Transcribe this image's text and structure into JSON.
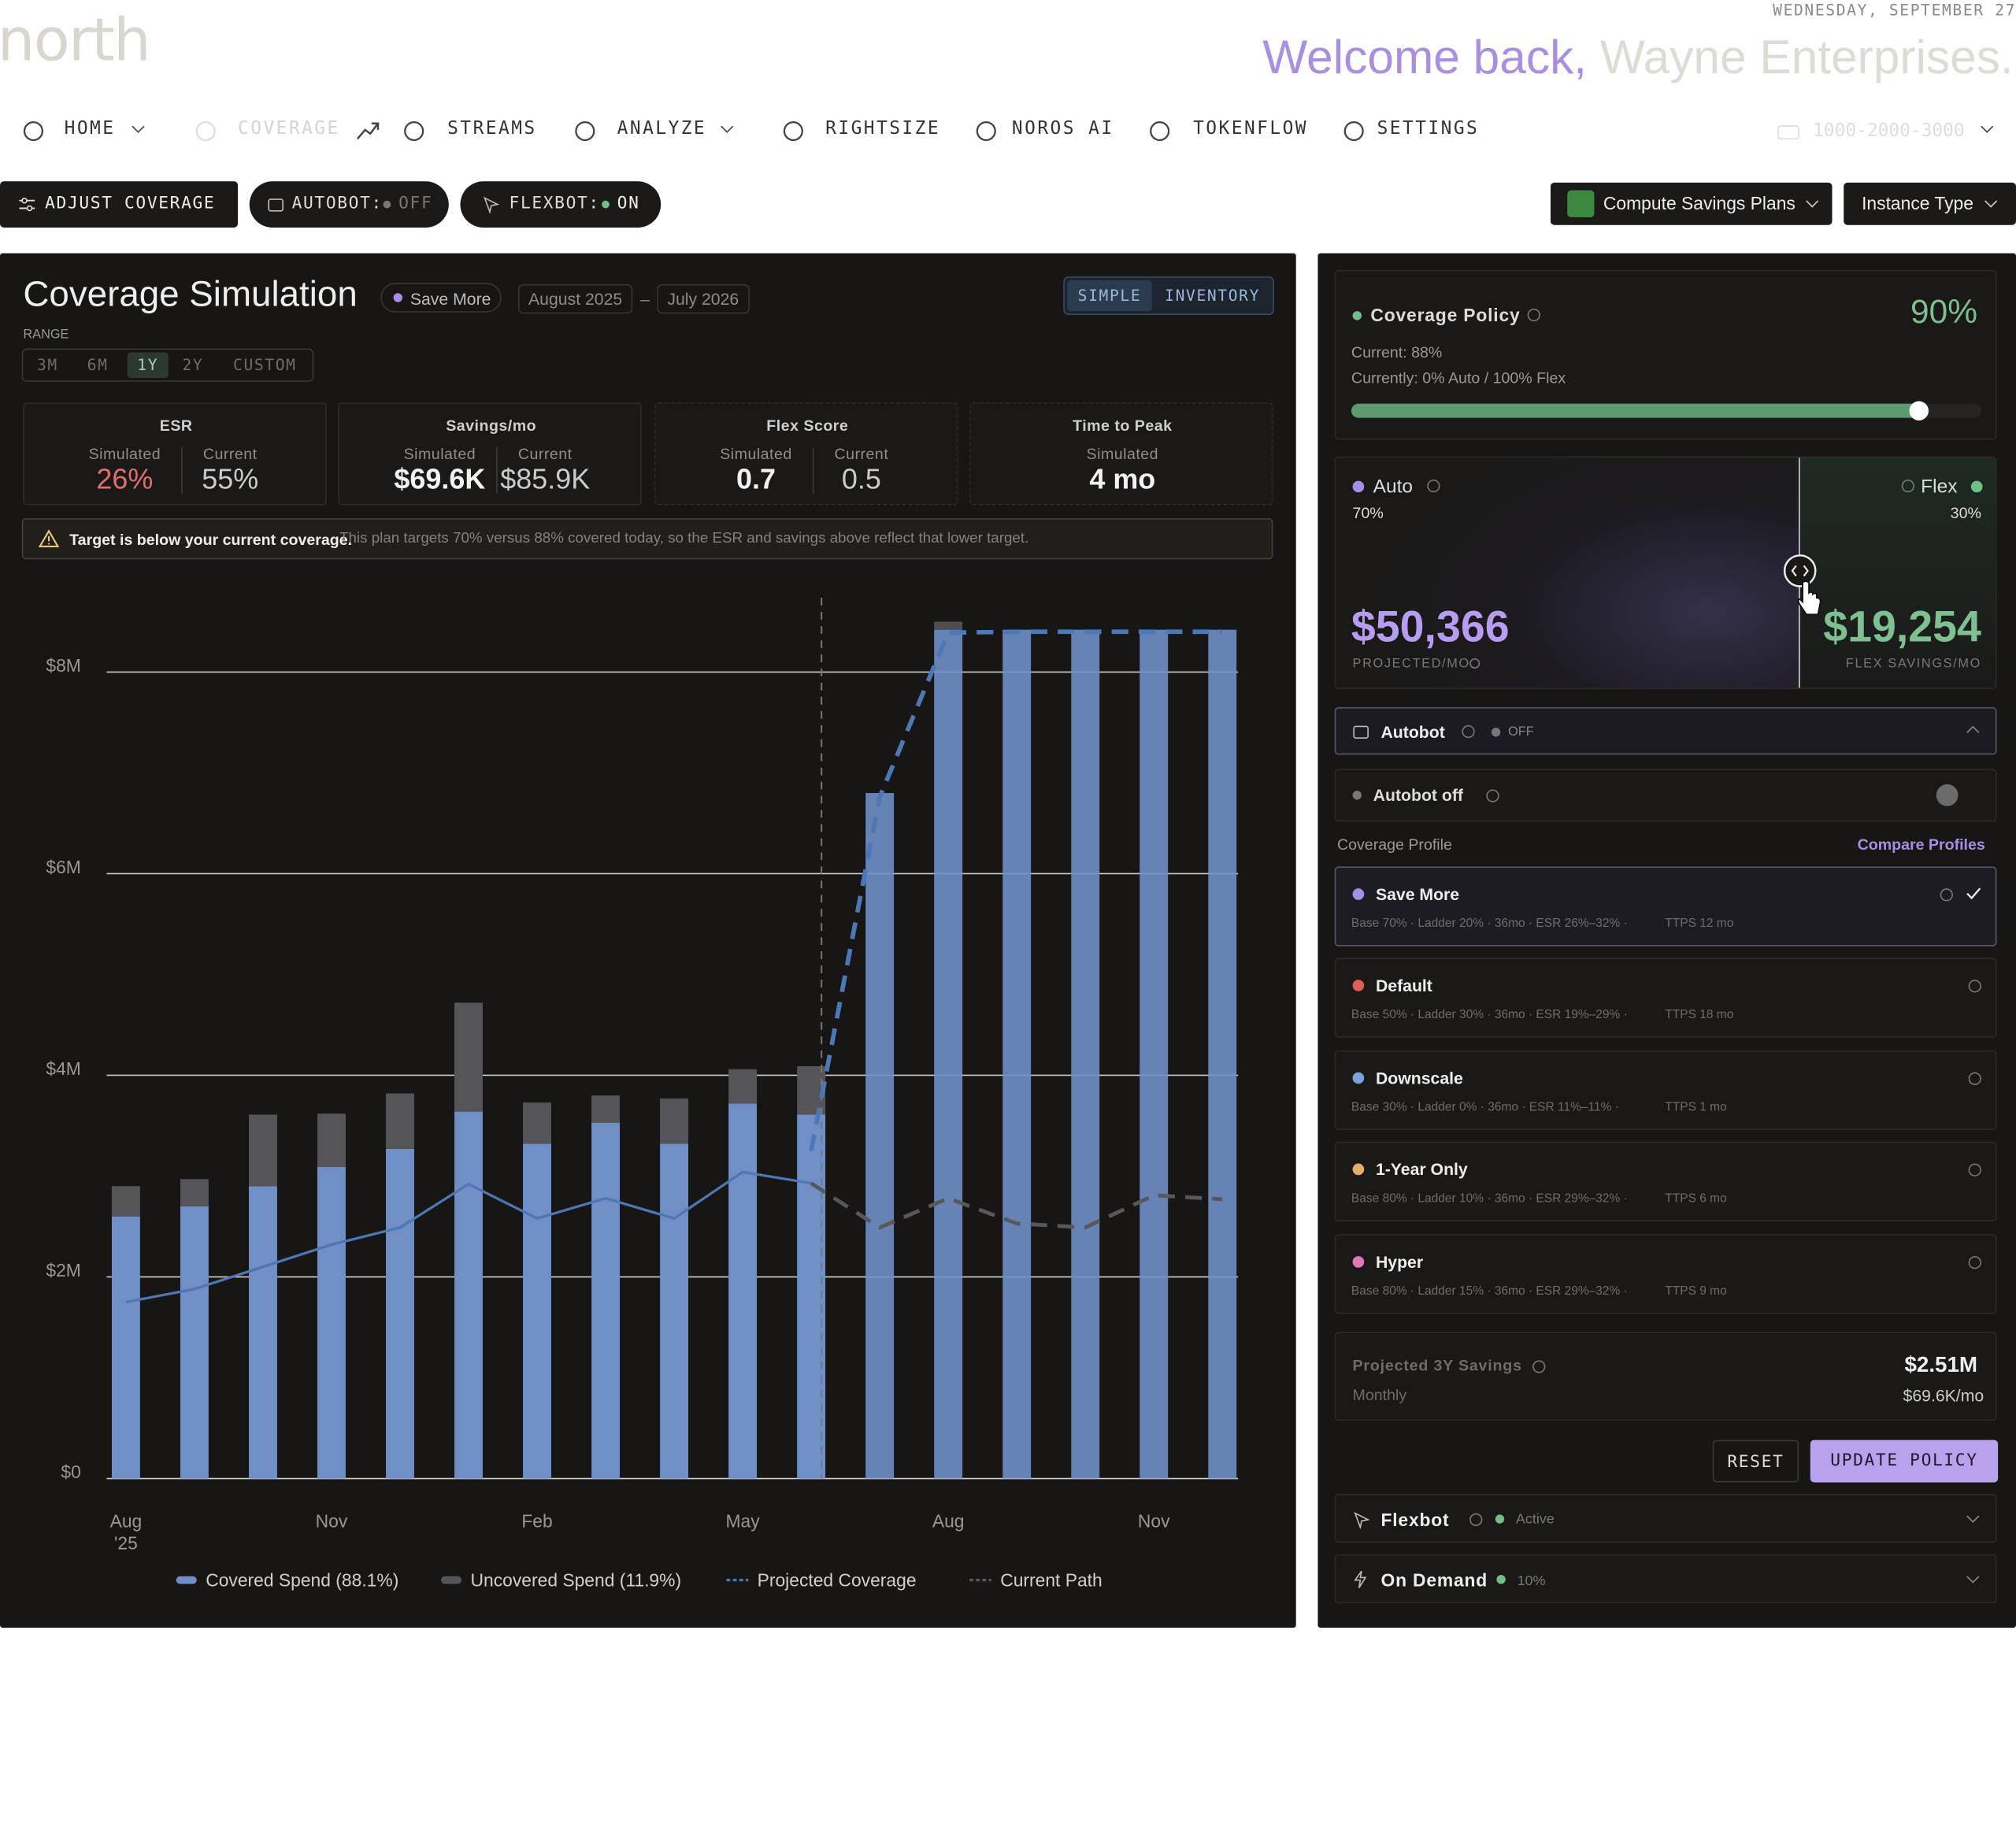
{
  "header": {
    "logo": "north",
    "date": "WEDNESDAY, SEPTEMBER 27",
    "welcome": "Welcome back,",
    "company": "Wayne Enterprises."
  },
  "nav": {
    "items": [
      "HOME",
      "COVERAGE",
      "STREAMS",
      "ANALYZE",
      "RIGHTSIZE",
      "NOROS AI",
      "TOKENFLOW",
      "SETTINGS"
    ],
    "account": "1000-2000-3000"
  },
  "toolbar": {
    "adjust": "ADJUST COVERAGE",
    "autobot": "AUTOBOT:",
    "autobot_state": "OFF",
    "flexbot": "FLEXBOT:",
    "flexbot_state": "ON",
    "plan_type": "Compute Savings Plans",
    "instance_type": "Instance Type"
  },
  "simulation": {
    "title": "Coverage Simulation",
    "profile": "Save More",
    "start": "August 2025",
    "separator": "–",
    "end": "July 2026",
    "modes": [
      "SIMPLE",
      "INVENTORY"
    ],
    "range_label": "RANGE",
    "ranges": [
      "3M",
      "6M",
      "1Y",
      "2Y",
      "CUSTOM"
    ],
    "stats": [
      {
        "title": "ESR",
        "cols": [
          {
            "label": "Simulated",
            "value": "26%"
          },
          {
            "label": "Current",
            "value": "55%"
          }
        ]
      },
      {
        "title": "Savings/mo",
        "cols": [
          {
            "label": "Simulated",
            "value": "$69.6K"
          },
          {
            "label": "Current",
            "value": "$85.9K"
          }
        ]
      },
      {
        "title": "Flex Score",
        "cols": [
          {
            "label": "Simulated",
            "value": "0.7"
          },
          {
            "label": "Current",
            "value": "0.5"
          }
        ]
      },
      {
        "title": "Time to Peak",
        "cols": [
          {
            "label": "Simulated",
            "value": "4 mo"
          }
        ]
      }
    ],
    "warning_title": "Target is below your current coverage.",
    "warning_text": "This plan targets 70% versus 88% covered today, so the ESR and savings above reflect that lower target."
  },
  "chart_data": {
    "type": "bar",
    "stacked": true,
    "categories": [
      "Aug",
      null,
      null,
      "Nov",
      null,
      null,
      "Feb",
      null,
      null,
      "May",
      null,
      null,
      "Aug",
      null,
      null,
      "Nov",
      null
    ],
    "year_label": "'25",
    "today_index": 10,
    "series": [
      {
        "name": "Covered Spend (88.1%)",
        "color": "#6f8fc6",
        "values": [
          2.6,
          2.7,
          2.9,
          3.09,
          3.27,
          3.64,
          3.32,
          3.53,
          3.32,
          3.72,
          3.61,
          6.8,
          8.42,
          8.42,
          8.42,
          8.42,
          8.42
        ]
      },
      {
        "name": "Uncovered Spend (11.9%)",
        "color": "#555458",
        "values": [
          0.3,
          0.27,
          0.71,
          0.53,
          0.55,
          1.08,
          0.41,
          0.27,
          0.45,
          0.34,
          0.48,
          0,
          0.08,
          0,
          0,
          0,
          0
        ]
      },
      {
        "name": "Projected Coverage",
        "type": "line",
        "dash": true,
        "color": "#4d78b8",
        "values": [
          null,
          null,
          null,
          null,
          null,
          null,
          null,
          null,
          null,
          null,
          3.25,
          6.76,
          8.39,
          8.4,
          8.4,
          8.4,
          8.4
        ]
      },
      {
        "name": "Current Path",
        "type": "line",
        "dash": true,
        "color": "#58575c",
        "history_color": "#4d76b2",
        "values": [
          1.75,
          1.88,
          2.1,
          2.32,
          2.49,
          2.92,
          2.58,
          2.78,
          2.58,
          3.04,
          2.93,
          2.49,
          2.78,
          2.53,
          2.49,
          2.81,
          2.77
        ]
      }
    ],
    "ylim": [
      0,
      8.8
    ],
    "yticks": [
      {
        "value": 0,
        "label": "$0"
      },
      {
        "value": 2,
        "label": "$2M"
      },
      {
        "value": 4,
        "label": "$4M"
      },
      {
        "value": 6,
        "label": "$6M"
      },
      {
        "value": 8,
        "label": "$8M"
      }
    ],
    "grid": true
  },
  "policy": {
    "title": "Coverage Policy",
    "target": "90%",
    "current": "Current: 88%",
    "split": "Currently: 0% Auto / 100% Flex",
    "auto": {
      "label": "Auto",
      "share": "70%",
      "amount": "$50,366",
      "caption": "PROJECTED/MO"
    },
    "flex": {
      "label": "Flex",
      "share": "30%",
      "amount": "$19,254",
      "caption": "FLEX SAVINGS/MO"
    },
    "autobot": {
      "label": "Autobot",
      "state": "OFF",
      "toggle_label": "Autobot off"
    },
    "profiles_label": "Coverage Profile",
    "compare": "Compare Profiles",
    "selected": 0,
    "profiles": [
      {
        "name": "Save More",
        "color": "#a88de6",
        "detail": "Base 70% · Ladder 20% · 36mo · ESR 26%–32% ·",
        "ttps": "TTPS 12 mo"
      },
      {
        "name": "Default",
        "color": "#df5f58",
        "detail": "Base 50% · Ladder 30% · 36mo · ESR 19%–29% ·",
        "ttps": "TTPS 18 mo"
      },
      {
        "name": "Downscale",
        "color": "#7aa2d6",
        "detail": "Base 30% · Ladder 0% · 36mo · ESR 11%–11% ·",
        "ttps": "TTPS 1 mo"
      },
      {
        "name": "1-Year Only",
        "color": "#e2ae68",
        "detail": "Base 80% · Ladder 10% · 36mo · ESR 29%–32% ·",
        "ttps": "TTPS 6 mo"
      },
      {
        "name": "Hyper",
        "color": "#df78b6",
        "detail": "Base 80% · Ladder 15% · 36mo · ESR 29%–32% ·",
        "ttps": "TTPS 9 mo"
      }
    ],
    "savings_label": "Projected 3Y Savings",
    "monthly_label": "Monthly",
    "savings_total": "$2.51M",
    "savings_monthly": "$69.6K/mo",
    "reset": "RESET",
    "update": "UPDATE POLICY",
    "flexbot": {
      "label": "Flexbot",
      "state": "Active"
    },
    "on_demand": {
      "label": "On Demand",
      "state": "10%"
    }
  }
}
